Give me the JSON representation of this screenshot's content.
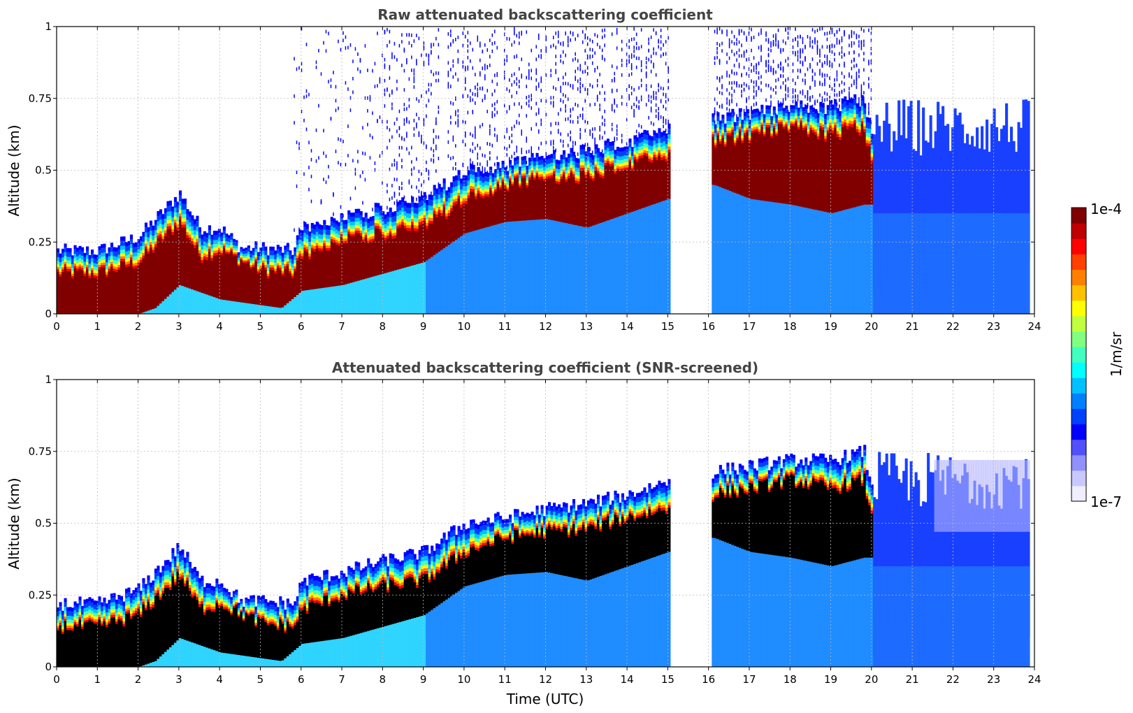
{
  "chart_data": [
    {
      "type": "heatmap",
      "title": "Raw attenuated backscattering coefficient",
      "xlabel": "",
      "ylabel": "Altitude (km)",
      "xlim": [
        0,
        24
      ],
      "ylim": [
        0,
        1
      ],
      "xticks": [
        "0",
        "1",
        "2",
        "3",
        "4",
        "5",
        "6",
        "7",
        "8",
        "9",
        "10",
        "11",
        "12",
        "13",
        "14",
        "15",
        "16",
        "17",
        "18",
        "19",
        "20",
        "21",
        "22",
        "23",
        "24"
      ],
      "yticks": [
        "0",
        "0.25",
        "0.5",
        "0.75",
        "1"
      ],
      "grid": true,
      "colorscale": "jet",
      "data_gap_utc": [
        15.05,
        16.05
      ],
      "layer_top_km": [
        [
          0,
          0.22
        ],
        [
          1,
          0.22
        ],
        [
          2,
          0.27
        ],
        [
          3,
          0.42
        ],
        [
          3.5,
          0.3
        ],
        [
          4,
          0.3
        ],
        [
          4.5,
          0.23
        ],
        [
          5,
          0.23
        ],
        [
          5.8,
          0.22
        ],
        [
          6,
          0.3
        ],
        [
          7,
          0.33
        ],
        [
          8,
          0.37
        ],
        [
          9,
          0.4
        ],
        [
          10,
          0.5
        ],
        [
          11,
          0.52
        ],
        [
          12,
          0.55
        ],
        [
          13,
          0.57
        ],
        [
          14,
          0.6
        ],
        [
          15,
          0.65
        ],
        [
          16.1,
          0.68
        ],
        [
          17,
          0.7
        ],
        [
          18,
          0.72
        ],
        [
          19,
          0.72
        ],
        [
          19.8,
          0.75
        ],
        [
          20,
          0.6
        ]
      ],
      "saturated_core_top_km": [
        [
          0,
          0.14
        ],
        [
          1,
          0.14
        ],
        [
          2,
          0.18
        ],
        [
          3,
          0.32
        ],
        [
          3.5,
          0.2
        ],
        [
          4,
          0.22
        ],
        [
          5,
          0.15
        ],
        [
          5.8,
          0.14
        ],
        [
          6,
          0.2
        ],
        [
          7,
          0.25
        ],
        [
          8,
          0.28
        ],
        [
          9,
          0.3
        ],
        [
          10,
          0.4
        ],
        [
          11,
          0.45
        ],
        [
          12,
          0.47
        ],
        [
          13,
          0.48
        ],
        [
          14,
          0.52
        ],
        [
          15,
          0.55
        ],
        [
          16.1,
          0.6
        ],
        [
          17,
          0.62
        ],
        [
          18,
          0.65
        ],
        [
          19,
          0.62
        ],
        [
          19.8,
          0.65
        ],
        [
          20,
          0.5
        ]
      ],
      "saturated_core_bottom_km": [
        [
          0,
          0
        ],
        [
          2,
          0
        ],
        [
          2.4,
          0.02
        ],
        [
          3,
          0.1
        ],
        [
          4,
          0.05
        ],
        [
          5.5,
          0.02
        ],
        [
          6,
          0.08
        ],
        [
          7,
          0.1
        ],
        [
          8,
          0.14
        ],
        [
          9,
          0.18
        ],
        [
          10,
          0.28
        ],
        [
          11,
          0.32
        ],
        [
          12,
          0.33
        ],
        [
          13,
          0.3
        ],
        [
          14,
          0.35
        ],
        [
          15,
          0.4
        ],
        [
          16.1,
          0.45
        ],
        [
          17,
          0.4
        ],
        [
          18,
          0.38
        ],
        [
          19,
          0.35
        ],
        [
          19.8,
          0.38
        ]
      ]
    },
    {
      "type": "heatmap",
      "title": "Attenuated backscattering coefficient (SNR-screened)",
      "xlabel": "Time (UTC)",
      "ylabel": "Altitude (km)",
      "xlim": [
        0,
        24
      ],
      "ylim": [
        0,
        1
      ],
      "xticks": [
        "0",
        "1",
        "2",
        "3",
        "4",
        "5",
        "6",
        "7",
        "8",
        "9",
        "10",
        "11",
        "12",
        "13",
        "14",
        "15",
        "16",
        "17",
        "18",
        "19",
        "20",
        "21",
        "22",
        "23",
        "24"
      ],
      "yticks": [
        "0",
        "0.25",
        "0.5",
        "0.75",
        "1"
      ],
      "grid": true,
      "colorscale": "jet",
      "data_gap_utc": [
        15.05,
        16.05
      ],
      "saturated_color": "#000000"
    }
  ],
  "colorbar": {
    "label": "1/m/sr",
    "max_label": "1e-4",
    "min_label": "1e-7",
    "colors": [
      "#eeeeff",
      "#c8c8ff",
      "#9090ff",
      "#5050ff",
      "#0000ff",
      "#0040ff",
      "#0080ff",
      "#00c0ff",
      "#00ffff",
      "#40ffbf",
      "#80ff80",
      "#c0ff40",
      "#ffff00",
      "#ffc000",
      "#ff8000",
      "#ff4000",
      "#ff0000",
      "#c00000",
      "#800000"
    ]
  }
}
